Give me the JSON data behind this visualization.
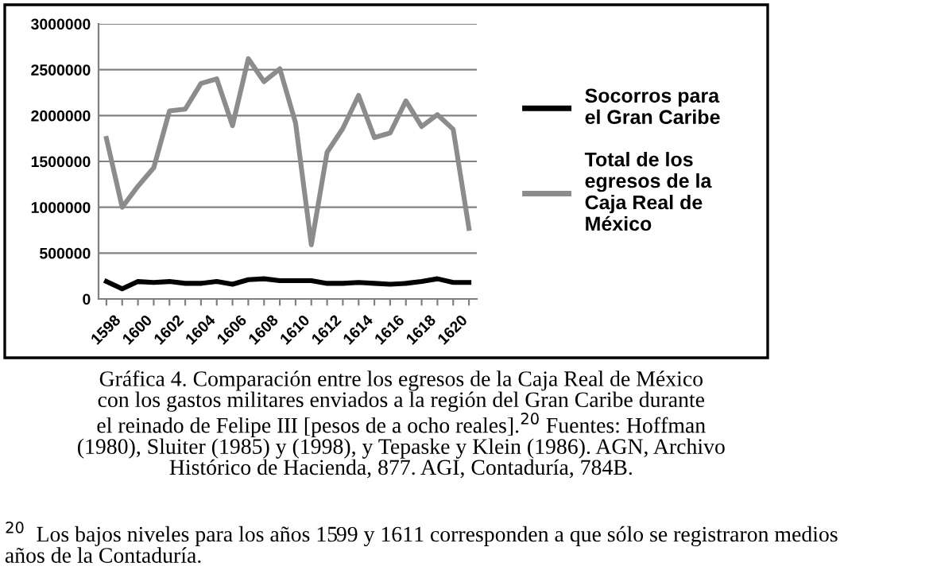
{
  "chart_data": {
    "type": "line",
    "categories": [
      "1598",
      null,
      "1600",
      null,
      "1602",
      null,
      "1604",
      null,
      "1606",
      null,
      "1608",
      null,
      "1610",
      null,
      "1612",
      null,
      "1614",
      null,
      "1616",
      null,
      "1618",
      null,
      "1620",
      null
    ],
    "series": [
      {
        "name": "Socorros para el Gran Caribe",
        "color": "#000000",
        "values": [
          190000,
          110000,
          190000,
          180000,
          190000,
          170000,
          170000,
          190000,
          160000,
          210000,
          220000,
          200000,
          200000,
          200000,
          170000,
          170000,
          180000,
          170000,
          160000,
          170000,
          190000,
          220000,
          180000,
          180000
        ]
      },
      {
        "name": "Total de los egresos de la Caja Real de México",
        "color": "#8c8c8c",
        "values": [
          1750000,
          1000000,
          1230000,
          1430000,
          2050000,
          2070000,
          2350000,
          2400000,
          1890000,
          2620000,
          2370000,
          2510000,
          1920000,
          590000,
          1600000,
          1860000,
          2220000,
          1760000,
          1810000,
          2160000,
          1880000,
          2010000,
          1850000,
          770000
        ]
      }
    ],
    "ylim": [
      0,
      3000000
    ],
    "yticks": [
      0,
      500000,
      1000000,
      1500000,
      2000000,
      2500000,
      3000000
    ],
    "grid": "y",
    "legend": "right",
    "marker": "none",
    "line_style": "solid",
    "annotations": [
      "Gráfica 4. Comparación entre los egresos de la Caja Real de México\ncon los gastos militares enviados a la región del Gran Caribe durante\nel reinado de Felipe III [pesos de a ocho reales].$^{20}$ Fuentes: Hoffman\n(1980), Sluiter (1985) y (1998), y Tepaske y Klein (1986). AGN, Archivo\nHistórico de Hacienda, 877. AGI, Contaduría, 784B.",
      "$^{20}$  Los bajos niveles para los años 1599 y 1611 corresponden a que sólo se registraron medios\naños de la Contaduría."
    ]
  }
}
